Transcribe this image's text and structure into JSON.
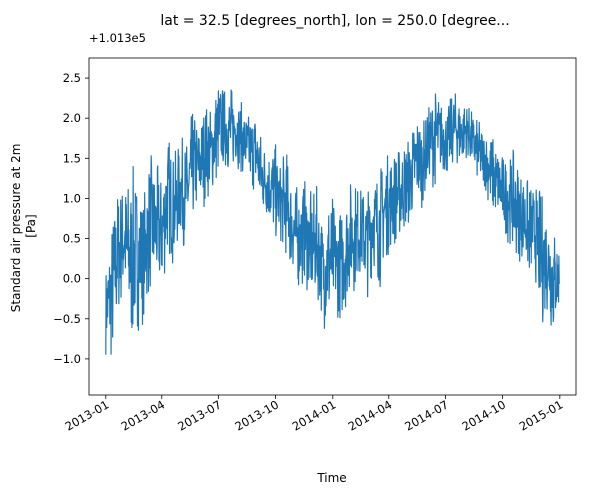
{
  "chart_data": {
    "type": "line",
    "title": "lat = 32.5 [degrees_north], lon = 250.0 [degree...",
    "xlabel": "Time",
    "ylabel_lines": [
      "Standard air pressure at 2m",
      "[Pa]"
    ],
    "offset_text": "+1.013e5",
    "xlim": [
      "2012-12-05",
      "2015-01-27"
    ],
    "ylim": [
      -1.45,
      2.75
    ],
    "x_ticks": [
      {
        "value": "2013-01-01",
        "label": "2013-01"
      },
      {
        "value": "2013-04-01",
        "label": "2013-04"
      },
      {
        "value": "2013-07-01",
        "label": "2013-07"
      },
      {
        "value": "2013-10-01",
        "label": "2013-10"
      },
      {
        "value": "2014-01-01",
        "label": "2014-01"
      },
      {
        "value": "2014-04-01",
        "label": "2014-04"
      },
      {
        "value": "2014-07-01",
        "label": "2014-07"
      },
      {
        "value": "2014-10-01",
        "label": "2014-10"
      },
      {
        "value": "2015-01-01",
        "label": "2015-01"
      }
    ],
    "y_ticks": [
      {
        "value": -1.0,
        "label": "−1.0"
      },
      {
        "value": -0.5,
        "label": "−0.5"
      },
      {
        "value": 0.0,
        "label": "0.0"
      },
      {
        "value": 0.5,
        "label": "0.5"
      },
      {
        "value": 1.0,
        "label": "1.0"
      },
      {
        "value": 1.5,
        "label": "1.5"
      },
      {
        "value": 2.0,
        "label": "2.0"
      },
      {
        "value": 2.5,
        "label": "2.5"
      }
    ],
    "grid": false,
    "series": [
      {
        "color": "#1f77b4",
        "x": [
          "2013-01-01",
          "2013-01-11",
          "2013-01-21",
          "2013-01-31",
          "2013-02-10",
          "2013-02-20",
          "2013-03-02",
          "2013-03-12",
          "2013-03-22",
          "2013-04-01",
          "2013-04-11",
          "2013-04-21",
          "2013-05-01",
          "2013-05-11",
          "2013-05-21",
          "2013-05-31",
          "2013-06-10",
          "2013-06-20",
          "2013-06-30",
          "2013-07-10",
          "2013-07-20",
          "2013-07-30",
          "2013-08-09",
          "2013-08-19",
          "2013-08-29",
          "2013-09-08",
          "2013-09-18",
          "2013-09-28",
          "2013-10-08",
          "2013-10-18",
          "2013-10-28",
          "2013-11-07",
          "2013-11-17",
          "2013-11-27",
          "2013-12-07",
          "2013-12-17",
          "2013-12-27",
          "2014-01-06",
          "2014-01-16",
          "2014-01-26",
          "2014-02-05",
          "2014-02-15",
          "2014-02-25",
          "2014-03-07",
          "2014-03-17",
          "2014-03-27",
          "2014-04-06",
          "2014-04-16",
          "2014-04-26",
          "2014-05-06",
          "2014-05-16",
          "2014-05-26",
          "2014-06-05",
          "2014-06-15",
          "2014-06-25",
          "2014-07-05",
          "2014-07-15",
          "2014-07-25",
          "2014-08-04",
          "2014-08-14",
          "2014-08-24",
          "2014-09-03",
          "2014-09-13",
          "2014-09-23",
          "2014-10-03",
          "2014-10-13",
          "2014-10-23",
          "2014-11-02",
          "2014-11-12",
          "2014-11-22",
          "2014-12-02",
          "2014-12-12",
          "2014-12-22",
          "2014-12-31"
        ],
        "y_min": [
          -0.95,
          -1.25,
          -0.6,
          -0.3,
          -1.1,
          -0.7,
          -0.6,
          -0.3,
          -0.25,
          -0.3,
          0.2,
          0.1,
          0.45,
          0.3,
          0.6,
          0.8,
          0.9,
          1.0,
          1.1,
          1.35,
          1.2,
          1.4,
          1.25,
          1.1,
          1.0,
          0.7,
          0.7,
          0.4,
          0.4,
          0.2,
          0.0,
          -0.2,
          -0.1,
          -0.4,
          -0.3,
          -0.6,
          -0.85,
          -0.5,
          -0.6,
          -0.3,
          -0.2,
          0.0,
          -0.3,
          0.1,
          -0.2,
          0.2,
          0.3,
          0.4,
          0.5,
          0.6,
          0.8,
          0.9,
          1.2,
          1.1,
          1.3,
          1.2,
          1.4,
          1.3,
          1.5,
          1.3,
          1.1,
          1.1,
          0.7,
          0.7,
          0.5,
          0.4,
          0.2,
          0.2,
          -0.1,
          0.0,
          -0.7,
          -0.5,
          -0.9,
          -0.4
        ],
        "y_max": [
          0.2,
          0.9,
          1.3,
          1.3,
          1.5,
          1.4,
          1.1,
          1.65,
          1.5,
          1.4,
          1.95,
          1.6,
          1.8,
          1.8,
          2.2,
          2.0,
          2.3,
          2.2,
          2.6,
          2.45,
          2.5,
          2.35,
          2.2,
          2.1,
          2.2,
          1.9,
          1.7,
          1.8,
          1.5,
          1.7,
          1.3,
          1.2,
          1.3,
          1.1,
          1.2,
          0.75,
          1.35,
          0.9,
          1.0,
          1.3,
          1.35,
          1.2,
          1.2,
          1.4,
          1.5,
          1.6,
          1.7,
          1.7,
          1.8,
          1.9,
          2.2,
          2.0,
          2.2,
          2.45,
          2.25,
          2.2,
          2.4,
          2.3,
          2.25,
          2.1,
          2.0,
          1.9,
          1.9,
          1.7,
          1.6,
          1.6,
          1.6,
          1.4,
          1.3,
          1.2,
          1.2,
          1.0,
          0.8,
          0.5
        ]
      }
    ]
  }
}
